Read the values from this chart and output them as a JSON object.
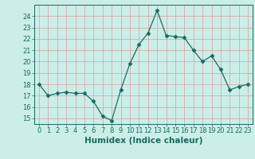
{
  "x": [
    0,
    1,
    2,
    3,
    4,
    5,
    6,
    7,
    8,
    9,
    10,
    11,
    12,
    13,
    14,
    15,
    16,
    17,
    18,
    19,
    20,
    21,
    22,
    23
  ],
  "y": [
    18,
    17,
    17.2,
    17.3,
    17.2,
    17.2,
    16.5,
    15.2,
    14.8,
    17.5,
    19.8,
    21.5,
    22.5,
    24.5,
    22.3,
    22.2,
    22.1,
    21.0,
    20.0,
    20.5,
    19.3,
    17.5,
    17.8,
    18.0
  ],
  "xlabel": "Humidex (Indice chaleur)",
  "ylim": [
    14.5,
    25.0
  ],
  "xlim": [
    -0.5,
    23.5
  ],
  "yticks": [
    15,
    16,
    17,
    18,
    19,
    20,
    21,
    22,
    23,
    24
  ],
  "xticks": [
    0,
    1,
    2,
    3,
    4,
    5,
    6,
    7,
    8,
    9,
    10,
    11,
    12,
    13,
    14,
    15,
    16,
    17,
    18,
    19,
    20,
    21,
    22,
    23
  ],
  "line_color": "#1a6b5e",
  "marker": "D",
  "marker_size": 2.5,
  "bg_color": "#cceee8",
  "grid_color": "#b0d4d0",
  "fig_bg": "#cceee8",
  "tick_color": "#1a6b5e",
  "xlabel_fontsize": 7.5,
  "tick_fontsize": 6.0
}
